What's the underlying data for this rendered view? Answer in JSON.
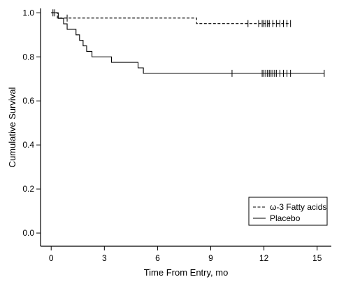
{
  "chart_data": {
    "type": "line",
    "title": "",
    "xlabel": "Time From Entry, mo",
    "ylabel": "Cumulative Survival",
    "xlim": [
      -0.6,
      15.8
    ],
    "ylim": [
      -0.06,
      1.02
    ],
    "xticks": [
      0,
      3,
      6,
      9,
      12,
      15
    ],
    "yticks": [
      0.0,
      0.2,
      0.4,
      0.6,
      0.8,
      1.0
    ],
    "ytick_labels": [
      "0.0",
      "0.2",
      "0.4",
      "0.6",
      "0.8",
      "1.0"
    ],
    "grid": false,
    "legend_position": "bottom-right",
    "series": [
      {
        "name": "ω-3 Fatty acids",
        "style": "dashed",
        "steps": [
          [
            0,
            1.0
          ],
          [
            0.35,
            0.976
          ],
          [
            8.2,
            0.951
          ],
          [
            13.5,
            0.951
          ]
        ],
        "censored": [
          [
            0.1,
            1.0
          ],
          [
            0.9,
            0.976
          ],
          [
            11.1,
            0.951
          ],
          [
            11.7,
            0.951
          ],
          [
            11.9,
            0.951
          ],
          [
            12.0,
            0.951
          ],
          [
            12.1,
            0.951
          ],
          [
            12.2,
            0.951
          ],
          [
            12.3,
            0.951
          ],
          [
            12.5,
            0.951
          ],
          [
            12.7,
            0.951
          ],
          [
            12.9,
            0.951
          ],
          [
            13.1,
            0.951
          ],
          [
            13.3,
            0.951
          ],
          [
            13.5,
            0.951
          ]
        ]
      },
      {
        "name": "Placebo",
        "style": "solid",
        "steps": [
          [
            0,
            1.0
          ],
          [
            0.4,
            0.975
          ],
          [
            0.7,
            0.95
          ],
          [
            0.9,
            0.925
          ],
          [
            1.4,
            0.9
          ],
          [
            1.6,
            0.875
          ],
          [
            1.8,
            0.85
          ],
          [
            2.0,
            0.825
          ],
          [
            2.3,
            0.8
          ],
          [
            3.4,
            0.775
          ],
          [
            4.9,
            0.75
          ],
          [
            5.2,
            0.725
          ],
          [
            15.4,
            0.725
          ]
        ],
        "censored": [
          [
            0.2,
            1.0
          ],
          [
            10.2,
            0.725
          ],
          [
            11.9,
            0.725
          ],
          [
            12.0,
            0.725
          ],
          [
            12.1,
            0.725
          ],
          [
            12.2,
            0.725
          ],
          [
            12.3,
            0.725
          ],
          [
            12.4,
            0.725
          ],
          [
            12.5,
            0.725
          ],
          [
            12.6,
            0.725
          ],
          [
            12.7,
            0.725
          ],
          [
            12.9,
            0.725
          ],
          [
            13.1,
            0.725
          ],
          [
            13.3,
            0.725
          ],
          [
            13.5,
            0.725
          ],
          [
            15.4,
            0.725
          ]
        ]
      }
    ]
  }
}
